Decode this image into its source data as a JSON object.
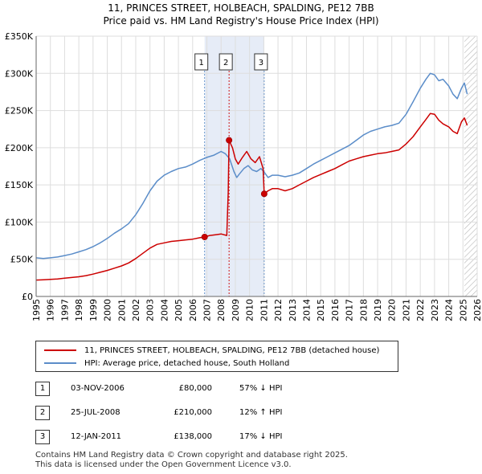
{
  "title_line1": "11, PRINCES STREET, HOLBEACH, SPALDING, PE12 7BB",
  "title_line2": "Price paid vs. HM Land Registry's House Price Index (HPI)",
  "legend": {
    "property": "11, PRINCES STREET, HOLBEACH, SPALDING, PE12 7BB (detached house)",
    "hpi": "HPI: Average price, detached house, South Holland"
  },
  "colors": {
    "property": "#cc0000",
    "hpi": "#5b8dc9",
    "band": "#e6ecf7",
    "hatch": "#b5b5b5"
  },
  "transactions": [
    {
      "num": "1",
      "date": "03-NOV-2006",
      "price": "£80,000",
      "hpi": "57% ↓ HPI"
    },
    {
      "num": "2",
      "date": "25-JUL-2008",
      "price": "£210,000",
      "hpi": "12% ↑ HPI"
    },
    {
      "num": "3",
      "date": "12-JAN-2011",
      "price": "£138,000",
      "hpi": "17% ↓ HPI"
    }
  ],
  "footer_line1": "Contains HM Land Registry data © Crown copyright and database right 2025.",
  "footer_line2": "This data is licensed under the Open Government Licence v3.0.",
  "chart_data": {
    "type": "line",
    "xlim": [
      1995,
      2026
    ],
    "ylim": [
      0,
      350000
    ],
    "x_ticks": [
      1995,
      1996,
      1997,
      1998,
      1999,
      2000,
      2001,
      2002,
      2003,
      2004,
      2005,
      2006,
      2007,
      2008,
      2009,
      2010,
      2011,
      2012,
      2013,
      2014,
      2015,
      2016,
      2017,
      2018,
      2019,
      2020,
      2021,
      2022,
      2023,
      2024,
      2025,
      2026
    ],
    "y_ticks": [
      0,
      50000,
      100000,
      150000,
      200000,
      250000,
      300000,
      350000
    ],
    "y_tick_labels": [
      "£0",
      "£50K",
      "£100K",
      "£150K",
      "£200K",
      "£250K",
      "£300K",
      "£350K"
    ],
    "grid": true,
    "sale_markers": [
      {
        "label": "1",
        "x": 2006.84,
        "y": 80000
      },
      {
        "label": "2",
        "x": 2008.56,
        "y": 210000
      },
      {
        "label": "3",
        "x": 2011.03,
        "y": 138000
      }
    ],
    "hatched_after": 2025.1,
    "series": [
      {
        "name": "HPI: Average price, detached house, South Holland",
        "x": [
          1995,
          1995.5,
          1996,
          1996.5,
          1997,
          1997.5,
          1998,
          1998.5,
          1999,
          1999.5,
          2000,
          2000.5,
          2001,
          2001.5,
          2002,
          2002.5,
          2003,
          2003.5,
          2004,
          2004.5,
          2005,
          2005.5,
          2006,
          2006.5,
          2007,
          2007.5,
          2008,
          2008.3,
          2008.6,
          2008.9,
          2009.1,
          2009.3,
          2009.6,
          2009.9,
          2010.2,
          2010.5,
          2010.8,
          2011,
          2011.3,
          2011.6,
          2012,
          2012.5,
          2013,
          2013.5,
          2014,
          2014.5,
          2015,
          2015.5,
          2016,
          2016.5,
          2017,
          2017.5,
          2018,
          2018.5,
          2019,
          2019.5,
          2020,
          2020.5,
          2021,
          2021.5,
          2022,
          2022.4,
          2022.7,
          2023,
          2023.3,
          2023.6,
          2024,
          2024.3,
          2024.6,
          2024.9,
          2025.1,
          2025.3
        ],
        "y": [
          52000,
          51000,
          52000,
          53000,
          55000,
          57000,
          60000,
          63000,
          67000,
          72000,
          78000,
          85000,
          91000,
          98000,
          110000,
          125000,
          142000,
          155000,
          163000,
          168000,
          172000,
          174000,
          178000,
          183000,
          187000,
          190000,
          195000,
          192000,
          185000,
          168000,
          160000,
          165000,
          172000,
          176000,
          170000,
          168000,
          172000,
          168000,
          160000,
          163000,
          163000,
          161000,
          163000,
          166000,
          172000,
          178000,
          183000,
          188000,
          193000,
          198000,
          203000,
          210000,
          217000,
          222000,
          225000,
          228000,
          230000,
          233000,
          245000,
          262000,
          280000,
          292000,
          300000,
          298000,
          290000,
          292000,
          283000,
          272000,
          266000,
          280000,
          287000,
          272000
        ]
      },
      {
        "name": "11, PRINCES STREET, HOLBEACH, SPALDING, PE12 7BB (detached house)",
        "x": [
          1995,
          1995.5,
          1996,
          1996.5,
          1997,
          1997.5,
          1998,
          1998.5,
          1999,
          1999.5,
          2000,
          2000.5,
          2001,
          2001.5,
          2002,
          2002.5,
          2003,
          2003.5,
          2004,
          2004.5,
          2005,
          2005.5,
          2006,
          2006.5,
          2006.84,
          2007.2,
          2007.6,
          2008,
          2008.4,
          2008.5,
          2008.56,
          2008.8,
          2009,
          2009.2,
          2009.5,
          2009.8,
          2010.1,
          2010.4,
          2010.7,
          2010.95,
          2011.03,
          2011.3,
          2011.6,
          2012,
          2012.5,
          2013,
          2013.5,
          2014,
          2014.5,
          2015,
          2015.5,
          2016,
          2016.5,
          2017,
          2017.5,
          2018,
          2018.5,
          2019,
          2019.5,
          2020,
          2020.5,
          2021,
          2021.5,
          2022,
          2022.4,
          2022.7,
          2023,
          2023.3,
          2023.6,
          2024,
          2024.3,
          2024.6,
          2024.9,
          2025.1,
          2025.3
        ],
        "y": [
          22000,
          22500,
          23000,
          23500,
          24500,
          25500,
          26500,
          28000,
          30000,
          32500,
          35000,
          38000,
          41000,
          45000,
          51000,
          58000,
          65000,
          70000,
          72000,
          74000,
          75000,
          76000,
          77000,
          79000,
          80000,
          82000,
          83000,
          84000,
          82000,
          140000,
          210000,
          200000,
          185000,
          178000,
          187000,
          195000,
          185000,
          180000,
          188000,
          172000,
          138000,
          142000,
          145000,
          145000,
          142000,
          145000,
          150000,
          155000,
          160000,
          164000,
          168000,
          172000,
          177000,
          182000,
          185000,
          188000,
          190000,
          192000,
          193000,
          195000,
          197000,
          205000,
          215000,
          228000,
          238000,
          246000,
          245000,
          237000,
          232000,
          228000,
          222000,
          219000,
          235000,
          240000,
          230000
        ]
      }
    ]
  }
}
